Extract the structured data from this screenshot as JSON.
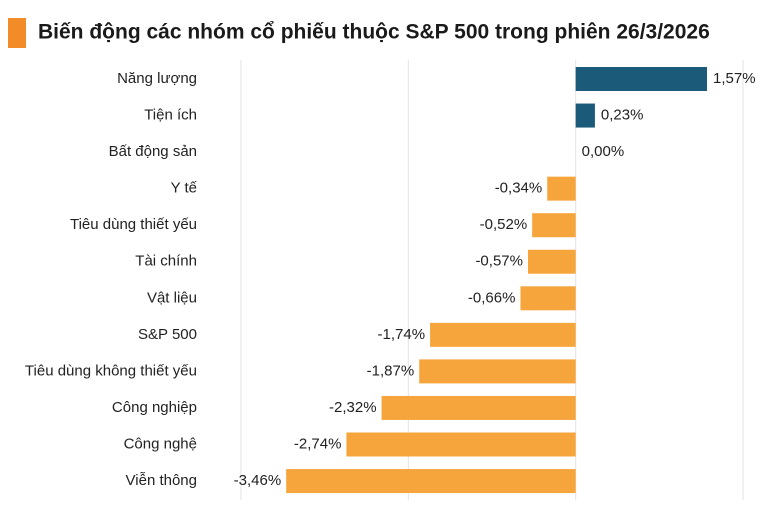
{
  "chart_data": {
    "type": "hbar",
    "title": "Biến động các nhóm cổ phiếu thuộc S&P 500 trong phiên 26/3/2026",
    "categories": [
      "Năng lượng",
      "Tiện ích",
      "Bất động sản",
      "Y tế",
      "Tiêu dùng thiết yếu",
      "Tài chính",
      "Vật liệu",
      "S&P 500",
      "Tiêu dùng không thiết yếu",
      "Công nghiệp",
      "Công nghệ",
      "Viễn thông"
    ],
    "values": [
      1.57,
      0.23,
      0.0,
      -0.34,
      -0.52,
      -0.57,
      -0.66,
      -1.74,
      -1.87,
      -2.32,
      -2.74,
      -3.46
    ],
    "value_labels": [
      "1,57%",
      "0,23%",
      "0,00%",
      "-0,34%",
      "-0,52%",
      "-0,57%",
      "-0,66%",
      "-1,74%",
      "-1,87%",
      "-2,32%",
      "-2,74%",
      "-3,46%"
    ],
    "positive_color": "#1b5a78",
    "negative_color": "#f6a53c",
    "xlim": [
      -4,
      2
    ],
    "xticks": [
      -4,
      -2,
      0,
      2
    ],
    "grid": true
  }
}
